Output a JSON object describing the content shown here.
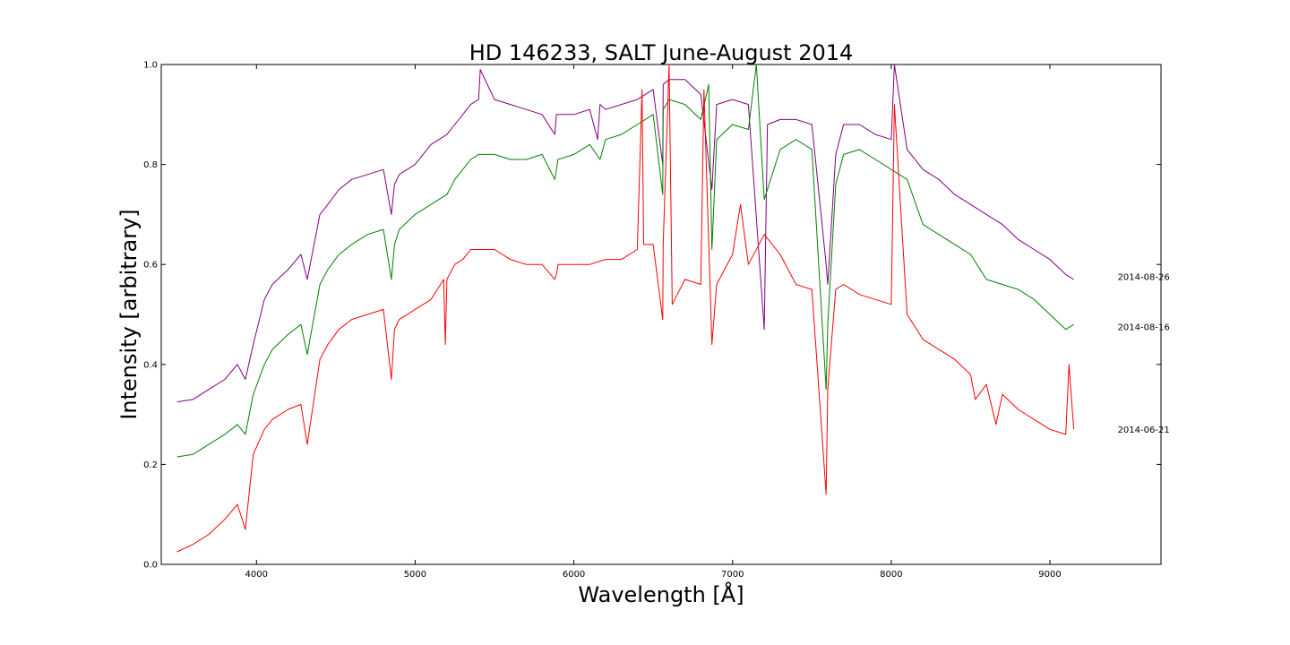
{
  "chart_data": {
    "type": "line",
    "title": "HD 146233, SALT June-August 2014",
    "xlabel": "Wavelength [Å]",
    "ylabel": "Intensity [arbitrary]",
    "xlim": [
      3400,
      9700
    ],
    "ylim": [
      0.0,
      1.0
    ],
    "xticks": [
      4000,
      5000,
      6000,
      7000,
      8000,
      9000
    ],
    "yticks": [
      0.0,
      0.2,
      0.4,
      0.6,
      0.8,
      1.0
    ],
    "ytick_labels": [
      "0.0",
      "0.2",
      "0.4",
      "0.6",
      "0.8",
      "1.0"
    ],
    "grid": false,
    "legend": "none",
    "series": [
      {
        "name": "2014-08-26",
        "color": "#800080",
        "label_value": 0.575,
        "x": [
          3500,
          3600,
          3700,
          3800,
          3880,
          3930,
          3980,
          4050,
          4100,
          4200,
          4280,
          4320,
          4400,
          4450,
          4520,
          4600,
          4700,
          4800,
          4850,
          4870,
          4900,
          5000,
          5100,
          5200,
          5250,
          5300,
          5350,
          5400,
          5410,
          5500,
          5600,
          5700,
          5800,
          5880,
          5890,
          5900,
          6000,
          6100,
          6150,
          6165,
          6200,
          6300,
          6400,
          6500,
          6560,
          6563,
          6600,
          6700,
          6800,
          6870,
          6900,
          7000,
          7100,
          7200,
          7220,
          7300,
          7400,
          7500,
          7590,
          7600,
          7650,
          7700,
          7800,
          7900,
          8000,
          8020,
          8100,
          8200,
          8300,
          8400,
          8500,
          8600,
          8700,
          8800,
          8900,
          9000,
          9100,
          9150
        ],
        "y": [
          0.325,
          0.33,
          0.35,
          0.37,
          0.4,
          0.37,
          0.44,
          0.53,
          0.56,
          0.59,
          0.62,
          0.57,
          0.7,
          0.72,
          0.75,
          0.77,
          0.78,
          0.79,
          0.7,
          0.76,
          0.78,
          0.8,
          0.84,
          0.86,
          0.88,
          0.9,
          0.92,
          0.93,
          0.99,
          0.93,
          0.92,
          0.91,
          0.9,
          0.86,
          0.9,
          0.9,
          0.9,
          0.91,
          0.85,
          0.92,
          0.91,
          0.92,
          0.93,
          0.95,
          0.8,
          0.96,
          0.97,
          0.97,
          0.94,
          0.75,
          0.92,
          0.93,
          0.92,
          0.47,
          0.88,
          0.89,
          0.89,
          0.88,
          0.6,
          0.56,
          0.82,
          0.88,
          0.88,
          0.86,
          0.85,
          1.0,
          0.83,
          0.79,
          0.77,
          0.74,
          0.72,
          0.7,
          0.68,
          0.65,
          0.63,
          0.61,
          0.58,
          0.57
        ]
      },
      {
        "name": "2014-08-16",
        "color": "#008000",
        "label_value": 0.475,
        "x": [
          3500,
          3600,
          3700,
          3800,
          3880,
          3930,
          3980,
          4050,
          4100,
          4200,
          4280,
          4320,
          4400,
          4450,
          4520,
          4600,
          4700,
          4800,
          4850,
          4870,
          4900,
          5000,
          5100,
          5200,
          5250,
          5300,
          5350,
          5400,
          5500,
          5600,
          5700,
          5800,
          5880,
          5890,
          5900,
          6000,
          6100,
          6165,
          6200,
          6300,
          6400,
          6500,
          6560,
          6563,
          6600,
          6700,
          6800,
          6850,
          6870,
          6900,
          7000,
          7100,
          7150,
          7200,
          7300,
          7400,
          7500,
          7590,
          7600,
          7650,
          7700,
          7800,
          7900,
          8000,
          8100,
          8200,
          8300,
          8400,
          8500,
          8600,
          8700,
          8800,
          8900,
          9000,
          9100,
          9150
        ],
        "y": [
          0.215,
          0.22,
          0.24,
          0.26,
          0.28,
          0.26,
          0.34,
          0.4,
          0.43,
          0.46,
          0.48,
          0.42,
          0.56,
          0.59,
          0.62,
          0.64,
          0.66,
          0.67,
          0.57,
          0.64,
          0.67,
          0.7,
          0.72,
          0.74,
          0.77,
          0.79,
          0.81,
          0.82,
          0.82,
          0.81,
          0.81,
          0.82,
          0.77,
          0.79,
          0.81,
          0.82,
          0.84,
          0.81,
          0.85,
          0.86,
          0.88,
          0.9,
          0.74,
          0.91,
          0.93,
          0.92,
          0.89,
          0.96,
          0.63,
          0.85,
          0.88,
          0.87,
          1.0,
          0.73,
          0.83,
          0.85,
          0.83,
          0.35,
          0.48,
          0.76,
          0.82,
          0.83,
          0.81,
          0.79,
          0.77,
          0.68,
          0.66,
          0.64,
          0.62,
          0.57,
          0.56,
          0.55,
          0.53,
          0.5,
          0.47,
          0.48
        ]
      },
      {
        "name": "2014-06-21",
        "color": "#ff0000",
        "label_value": 0.27,
        "x": [
          3500,
          3600,
          3700,
          3800,
          3880,
          3930,
          3980,
          4050,
          4100,
          4200,
          4280,
          4320,
          4400,
          4450,
          4520,
          4600,
          4700,
          4800,
          4850,
          4870,
          4900,
          5000,
          5100,
          5180,
          5190,
          5200,
          5250,
          5300,
          5350,
          5400,
          5500,
          5600,
          5700,
          5800,
          5880,
          5890,
          5900,
          6000,
          6100,
          6200,
          6300,
          6400,
          6430,
          6440,
          6500,
          6560,
          6563,
          6600,
          6620,
          6700,
          6800,
          6820,
          6870,
          6900,
          7000,
          7050,
          7100,
          7200,
          7300,
          7400,
          7500,
          7590,
          7600,
          7650,
          7700,
          7800,
          7900,
          8000,
          8020,
          8100,
          8200,
          8300,
          8400,
          8500,
          8530,
          8600,
          8660,
          8700,
          8800,
          8900,
          9000,
          9100,
          9120,
          9150
        ],
        "y": [
          0.025,
          0.04,
          0.06,
          0.09,
          0.12,
          0.07,
          0.22,
          0.27,
          0.29,
          0.31,
          0.32,
          0.24,
          0.41,
          0.44,
          0.47,
          0.49,
          0.5,
          0.51,
          0.37,
          0.47,
          0.49,
          0.51,
          0.53,
          0.57,
          0.44,
          0.57,
          0.6,
          0.61,
          0.63,
          0.63,
          0.63,
          0.61,
          0.6,
          0.6,
          0.57,
          0.58,
          0.6,
          0.6,
          0.6,
          0.61,
          0.61,
          0.63,
          0.95,
          0.64,
          0.64,
          0.49,
          0.64,
          1.0,
          0.52,
          0.57,
          0.56,
          0.95,
          0.44,
          0.56,
          0.62,
          0.72,
          0.6,
          0.66,
          0.62,
          0.56,
          0.55,
          0.14,
          0.35,
          0.55,
          0.56,
          0.54,
          0.53,
          0.52,
          0.92,
          0.5,
          0.45,
          0.43,
          0.41,
          0.38,
          0.33,
          0.36,
          0.28,
          0.34,
          0.31,
          0.29,
          0.27,
          0.26,
          0.4,
          0.27
        ]
      }
    ]
  }
}
